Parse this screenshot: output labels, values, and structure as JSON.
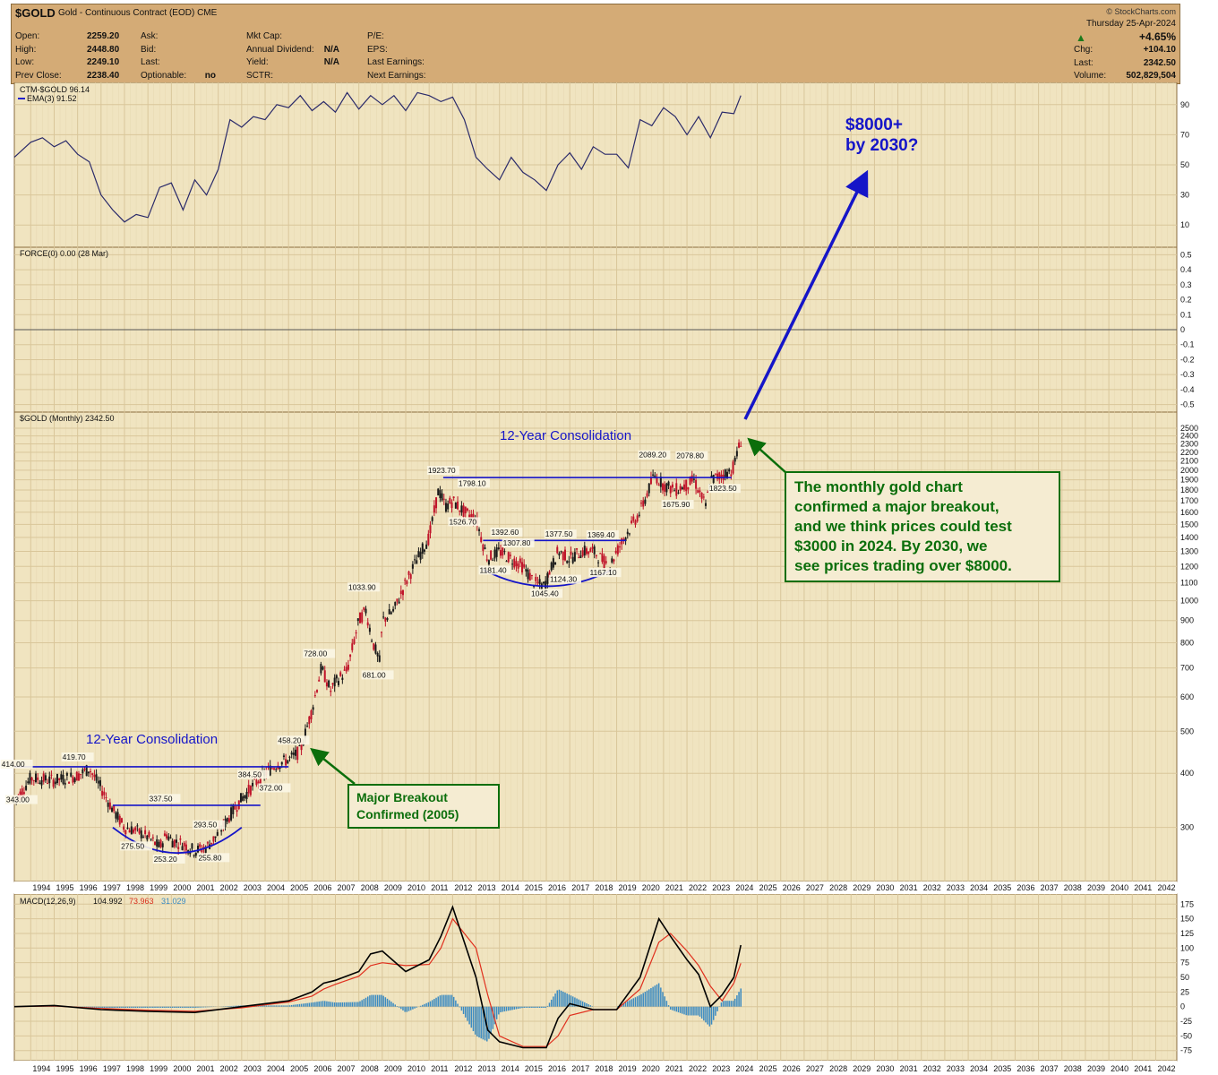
{
  "header": {
    "symbol": "$GOLD",
    "description": "Gold - Continuous Contract (EOD)",
    "exchange": "CME",
    "brand": "© StockCharts.com",
    "date": "Thursday  25-Apr-2024",
    "change_pct": "+4.65%",
    "quote": [
      {
        "label": "Open:",
        "value": "2259.20"
      },
      {
        "label": "High:",
        "value": "2448.80"
      },
      {
        "label": "Low:",
        "value": "2249.10"
      },
      {
        "label": "Prev Close:",
        "value": "2238.40"
      }
    ],
    "quote2": [
      {
        "label": "Ask:",
        "value": ""
      },
      {
        "label": "Bid:",
        "value": ""
      },
      {
        "label": "Last:",
        "value": ""
      },
      {
        "label": "Optionable:",
        "value": "no"
      }
    ],
    "quote3": [
      {
        "label": "Mkt Cap:",
        "value": ""
      },
      {
        "label": "Annual Dividend:",
        "value": "N/A"
      },
      {
        "label": "Yield:",
        "value": "N/A"
      },
      {
        "label": "SCTR:",
        "value": ""
      }
    ],
    "quote4": [
      {
        "label": "P/E:"
      },
      {
        "label": "EPS:"
      },
      {
        "label": "Last Earnings:"
      },
      {
        "label": "Next Earnings:"
      }
    ],
    "right": [
      {
        "label": "Chg:",
        "value": "+104.10"
      },
      {
        "label": "Last:",
        "value": "2342.50"
      },
      {
        "label": "Volume:",
        "value": "502,829,504"
      }
    ]
  },
  "chart_data": [
    {
      "type": "line",
      "panel": "ctm",
      "legend": [
        "CTM-$GOLD 96.14",
        "EMA(3) 91.52"
      ],
      "yticks": [
        90,
        70,
        50,
        30,
        10
      ],
      "ylim": [
        0,
        100
      ],
      "x": [
        1993.3,
        1994,
        1994.5,
        1995,
        1995.5,
        1996,
        1996.5,
        1997,
        1997.5,
        1998,
        1998.5,
        1999,
        1999.5,
        2000,
        2000.5,
        2001,
        2001.5,
        2002,
        2002.5,
        2003,
        2003.5,
        2004,
        2004.5,
        2005,
        2005.5,
        2006,
        2006.5,
        2007,
        2007.5,
        2008,
        2008.5,
        2009,
        2009.5,
        2010,
        2010.5,
        2011,
        2011.5,
        2012,
        2012.5,
        2013,
        2013.5,
        2014,
        2014.5,
        2015,
        2015.5,
        2016,
        2016.5,
        2017,
        2017.5,
        2018,
        2018.5,
        2019,
        2019.5,
        2020,
        2020.5,
        2021,
        2021.5,
        2022,
        2022.5,
        2023,
        2023.5,
        2024,
        2024.3
      ],
      "values": [
        55,
        65,
        68,
        62,
        66,
        57,
        52,
        30,
        20,
        12,
        17,
        15,
        35,
        38,
        20,
        40,
        30,
        47,
        80,
        75,
        82,
        80,
        90,
        88,
        96,
        86,
        92,
        85,
        98,
        87,
        96,
        90,
        96,
        86,
        98,
        96,
        92,
        95,
        80,
        55,
        47,
        40,
        55,
        45,
        40,
        33,
        50,
        58,
        47,
        62,
        57,
        57,
        48,
        80,
        76,
        88,
        82,
        70,
        82,
        68,
        85,
        84,
        96
      ]
    },
    {
      "type": "bar",
      "panel": "force",
      "legend": "FORCE(0) 0.00 (28 Mar)",
      "yticks": [
        0.5,
        0.4,
        0.3,
        0.2,
        0.1,
        0.0,
        -0.1,
        -0.2,
        -0.3,
        -0.4,
        -0.5
      ],
      "values": [
        0.0
      ]
    },
    {
      "type": "line",
      "panel": "price",
      "legend": "$GOLD (Monthly) 2342.50",
      "yscale": "log",
      "yticks": [
        2500,
        2400,
        2300,
        2200,
        2100,
        2000,
        1900,
        1800,
        1700,
        1600,
        1500,
        1400,
        1300,
        1200,
        1100,
        1000,
        900,
        800,
        700,
        600,
        500,
        400,
        300
      ],
      "ylim": [
        250,
        2500
      ],
      "x": [
        1993.3,
        1994,
        1995,
        1996,
        1996.5,
        1997,
        1997.5,
        1998,
        1998.5,
        1999,
        1999.5,
        1999.8,
        2000,
        2000.5,
        2001,
        2001.5,
        2002,
        2002.5,
        2003,
        2003.5,
        2004,
        2004.5,
        2005,
        2005.5,
        2006,
        2006.4,
        2006.8,
        2007,
        2007.5,
        2008,
        2008.3,
        2008.6,
        2008.9,
        2009,
        2009.5,
        2010,
        2010.5,
        2011,
        2011.4,
        2011.7,
        2012,
        2012.5,
        2013,
        2013.3,
        2013.5,
        2014,
        2014.5,
        2015,
        2015.5,
        2015.9,
        2016.5,
        2017,
        2017.5,
        2018,
        2018.7,
        2019,
        2019.5,
        2020,
        2020.6,
        2021,
        2021.5,
        2022,
        2022.3,
        2022.8,
        2023,
        2023.5,
        2023.9,
        2024,
        2024.3
      ],
      "values": [
        343,
        390,
        385,
        395,
        410,
        370,
        330,
        300,
        295,
        285,
        270,
        290,
        280,
        275,
        265,
        270,
        290,
        320,
        350,
        375,
        400,
        420,
        430,
        450,
        560,
        700,
        620,
        650,
        690,
        900,
        950,
        800,
        720,
        900,
        950,
        1100,
        1250,
        1400,
        1800,
        1650,
        1700,
        1600,
        1550,
        1350,
        1250,
        1300,
        1250,
        1200,
        1100,
        1080,
        1300,
        1250,
        1300,
        1300,
        1200,
        1300,
        1450,
        1600,
        1950,
        1850,
        1800,
        1850,
        1900,
        1650,
        1900,
        1950,
        2000,
        2050,
        2342
      ]
    },
    {
      "type": "line",
      "panel": "macd",
      "legend": [
        "MACD(12,26,9)",
        "104.992",
        "73.963",
        "31.029"
      ],
      "yticks": [
        175,
        150,
        125,
        100,
        75,
        50,
        25,
        0,
        -25,
        -50,
        -75
      ],
      "ylim": [
        -80,
        180
      ],
      "x": [
        1993.3,
        1995,
        1997,
        1999,
        2001,
        2003,
        2004,
        2005,
        2006,
        2006.5,
        2007,
        2008,
        2008.5,
        2009,
        2010,
        2011,
        2011.5,
        2012,
        2013,
        2013.5,
        2014,
        2015,
        2016,
        2016.5,
        2017,
        2018,
        2019,
        2020,
        2020.8,
        2021.3,
        2022,
        2022.5,
        2023,
        2023.5,
        2024,
        2024.3
      ],
      "macd": [
        0,
        2,
        -5,
        -8,
        -10,
        0,
        5,
        10,
        25,
        40,
        45,
        60,
        90,
        95,
        60,
        80,
        120,
        170,
        50,
        -40,
        -60,
        -70,
        -70,
        -20,
        5,
        -5,
        -5,
        50,
        150,
        120,
        80,
        55,
        0,
        20,
        50,
        105
      ],
      "signal": [
        0,
        1,
        -3,
        -6,
        -8,
        -2,
        3,
        8,
        18,
        30,
        38,
        52,
        70,
        75,
        70,
        72,
        100,
        150,
        100,
        20,
        -50,
        -68,
        -68,
        -50,
        -15,
        -5,
        -5,
        30,
        110,
        125,
        95,
        70,
        35,
        10,
        40,
        74
      ],
      "histogram": [
        0,
        1,
        -2,
        -2,
        -2,
        2,
        2,
        2,
        7,
        10,
        7,
        8,
        20,
        20,
        -10,
        8,
        20,
        20,
        -50,
        -60,
        -10,
        -2,
        -2,
        30,
        20,
        0,
        0,
        20,
        40,
        -5,
        -15,
        -15,
        -35,
        10,
        10,
        31
      ]
    }
  ],
  "xaxis_years": [
    "1994",
    "1995",
    "1996",
    "1997",
    "1998",
    "1999",
    "2000",
    "2001",
    "2002",
    "2003",
    "2004",
    "2005",
    "2006",
    "2007",
    "2008",
    "2009",
    "2010",
    "2011",
    "2012",
    "2013",
    "2014",
    "2015",
    "2016",
    "2017",
    "2018",
    "2019",
    "2020",
    "2021",
    "2022",
    "2023",
    "2024",
    "2025",
    "2026",
    "2027",
    "2028",
    "2029",
    "2030",
    "2031",
    "2032",
    "2033",
    "2034",
    "2035",
    "2036",
    "2037",
    "2038",
    "2039",
    "2040",
    "2041",
    "2042"
  ],
  "price_labels": [
    {
      "text": "414.00",
      "x": 1993.4,
      "y": 414
    },
    {
      "text": "343.00",
      "x": 1993.6,
      "y": 343
    },
    {
      "text": "419.70",
      "x": 1996.0,
      "y": 430
    },
    {
      "text": "337.50",
      "x": 1999.7,
      "y": 345
    },
    {
      "text": "275.50",
      "x": 1998.5,
      "y": 268
    },
    {
      "text": "253.20",
      "x": 1999.9,
      "y": 250
    },
    {
      "text": "293.50",
      "x": 2001.6,
      "y": 300
    },
    {
      "text": "255.80",
      "x": 2001.8,
      "y": 252
    },
    {
      "text": "384.50",
      "x": 2003.5,
      "y": 392
    },
    {
      "text": "372.00",
      "x": 2004.4,
      "y": 365
    },
    {
      "text": "458.20",
      "x": 2005.2,
      "y": 470
    },
    {
      "text": "728.00",
      "x": 2006.3,
      "y": 745
    },
    {
      "text": "1033.90",
      "x": 2008.2,
      "y": 1060
    },
    {
      "text": "681.00",
      "x": 2008.8,
      "y": 665
    },
    {
      "text": "1923.70",
      "x": 2011.6,
      "y": 1970
    },
    {
      "text": "1798.10",
      "x": 2012.9,
      "y": 1840
    },
    {
      "text": "1526.70",
      "x": 2012.5,
      "y": 1500
    },
    {
      "text": "1392.60",
      "x": 2014.3,
      "y": 1420
    },
    {
      "text": "1307.80",
      "x": 2014.8,
      "y": 1340
    },
    {
      "text": "1181.40",
      "x": 2013.8,
      "y": 1160
    },
    {
      "text": "1377.50",
      "x": 2016.6,
      "y": 1405
    },
    {
      "text": "1369.40",
      "x": 2018.4,
      "y": 1400
    },
    {
      "text": "1124.30",
      "x": 2016.8,
      "y": 1105
    },
    {
      "text": "1045.40",
      "x": 2016.0,
      "y": 1025
    },
    {
      "text": "1167.10",
      "x": 2018.5,
      "y": 1145
    },
    {
      "text": "2089.20",
      "x": 2020.6,
      "y": 2140
    },
    {
      "text": "2078.80",
      "x": 2022.2,
      "y": 2130
    },
    {
      "text": "1675.90",
      "x": 2021.6,
      "y": 1645
    },
    {
      "text": "1823.50",
      "x": 2023.6,
      "y": 1790
    }
  ],
  "annotations": {
    "consolidation_left": "12-Year Consolidation",
    "consolidation_right": "12-Year Consolidation",
    "target": [
      "$8000+",
      "by 2030?"
    ],
    "breakout": [
      "Major Breakout",
      "Confirmed (2005)"
    ],
    "commentary": [
      "The monthly gold chart",
      "confirmed a major breakout,",
      "and we think prices could test",
      "$3000 in 2024. By 2030, we",
      "see prices trading over $8000."
    ]
  },
  "colors": {
    "panel_bg": "#f0e4c0",
    "header_bg": "#d4ab76",
    "grid": "#d9c69a",
    "price_line": "#1a1a1a",
    "up_candle": "#1a1a1a",
    "down_candle": "#c0142a",
    "annotation_blue": "#1515c8",
    "annotation_green": "#0b6e0b",
    "macd_line": "#000000",
    "signal_line": "#e0301e",
    "histogram": "#3b8bc2",
    "ctm_line": "#2a2a6a"
  }
}
